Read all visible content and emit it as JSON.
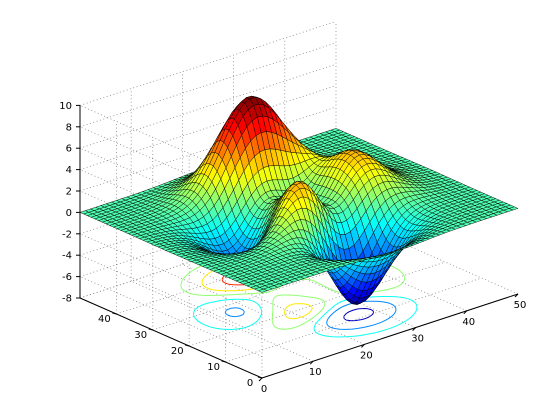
{
  "chart_data": {
    "type": "surface",
    "function": "peaks",
    "grid": true,
    "x": {
      "range": [
        0,
        50
      ],
      "ticks": [
        "0",
        "10",
        "20",
        "30",
        "40",
        "50"
      ]
    },
    "y": {
      "range": [
        0,
        50
      ],
      "ticks": [
        "0",
        "10",
        "20",
        "30",
        "40"
      ]
    },
    "z": {
      "range": [
        -8,
        10
      ],
      "ticks": [
        "-8",
        "-6",
        "-4",
        "-2",
        "0",
        "2",
        "4",
        "6",
        "8",
        "10"
      ]
    },
    "surface": {
      "mesh_size": 49,
      "peak_max": 8.1,
      "trough_min": -6.5,
      "colormap": "jet"
    },
    "contour_plane": {
      "z": -8,
      "levels": [
        -6,
        -3,
        -1,
        1,
        3,
        6
      ]
    },
    "colors": {
      "edge": "#000000",
      "grid": "#8a8a8a",
      "colormap_stops": [
        "#00008f",
        "#0000ff",
        "#00ffff",
        "#ffff00",
        "#ff0000",
        "#800000"
      ]
    }
  }
}
